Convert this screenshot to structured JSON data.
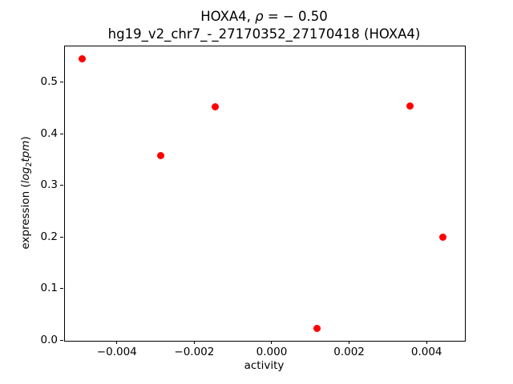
{
  "figure": {
    "title_line1_prefix": "HOXA4, ",
    "title_rho": "ρ",
    "title_line1_suffix": " = − 0.50",
    "title_line2": "hg19_v2_chr7_-_27170352_27170418 (HOXA4)",
    "xlabel": "activity",
    "ylabel_prefix": "expression (",
    "ylabel_italic1": "log",
    "ylabel_sub": "2",
    "ylabel_italic2": "tpm",
    "ylabel_suffix": ")"
  },
  "chart_data": {
    "type": "scatter",
    "title": "HOXA4, ρ = −0.50",
    "subtitle": "hg19_v2_chr7_-_27170352_27170418 (HOXA4)",
    "xlabel": "activity",
    "ylabel": "expression (log2tpm)",
    "marker_color": "#ff0000",
    "marker_size_px": 9,
    "grid": false,
    "legend": null,
    "xlim": [
      -0.005362,
      0.004969
    ],
    "ylim": [
      0,
      0.5714
    ],
    "xticks": [
      -0.004,
      -0.002,
      0,
      0.002,
      0.004
    ],
    "xtick_labels": [
      "−0.004",
      "−0.002",
      "0.000",
      "0.002",
      "0.004"
    ],
    "yticks": [
      0,
      0.1,
      0.2,
      0.3,
      0.4,
      0.5
    ],
    "ytick_labels": [
      "0.0",
      "0.1",
      "0.2",
      "0.3",
      "0.4",
      "0.5"
    ],
    "points": [
      {
        "x": -0.00489,
        "y": 0.546
      },
      {
        "x": -0.00286,
        "y": 0.358
      },
      {
        "x": -0.00145,
        "y": 0.453
      },
      {
        "x": 0.00116,
        "y": 0.023
      },
      {
        "x": 0.00358,
        "y": 0.454
      },
      {
        "x": 0.00443,
        "y": 0.199
      }
    ]
  }
}
